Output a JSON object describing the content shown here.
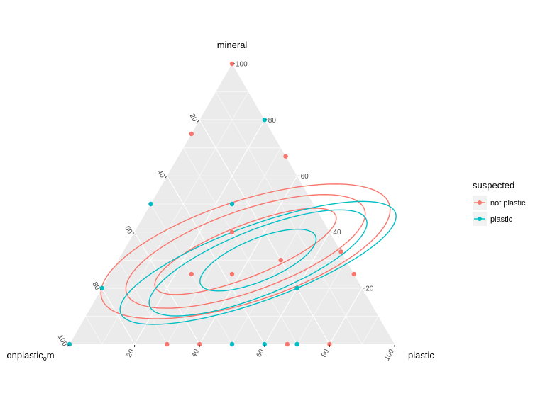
{
  "chart_data": {
    "type": "scatter",
    "subtype": "ternary",
    "title": "",
    "axes": {
      "top": "mineral",
      "left": "onplastic",
      "left_subscript": "o",
      "left_suffix": "m",
      "right": "plastic"
    },
    "ticks": [
      "20",
      "40",
      "60",
      "80",
      "100"
    ],
    "grid": true,
    "legend": {
      "title": "suspected",
      "position": "right",
      "entries": [
        {
          "label": "not plastic",
          "color": "#F8766D"
        },
        {
          "label": "plastic",
          "color": "#00BFC4"
        }
      ]
    },
    "series": [
      {
        "name": "not plastic",
        "color": "#F8766D",
        "points": [
          [
            0,
            100,
            0
          ],
          [
            0,
            0,
            100
          ],
          [
            33,
            67,
            0
          ],
          [
            67,
            33,
            0
          ],
          [
            50,
            0,
            50
          ],
          [
            67,
            0,
            33
          ],
          [
            75,
            25,
            0
          ],
          [
            37.5,
            25,
            37.5
          ],
          [
            0,
            75,
            25
          ],
          [
            30,
            40,
            30
          ],
          [
            0,
            50,
            50
          ],
          [
            50,
            30,
            20
          ],
          [
            25,
            25,
            50
          ],
          [
            30,
            0,
            70
          ],
          [
            40,
            0,
            60
          ],
          [
            80,
            0,
            20
          ],
          [
            60,
            20,
            20
          ]
        ]
      },
      {
        "name": "plastic",
        "color": "#00BFC4",
        "points": [
          [
            0,
            0,
            100
          ],
          [
            0,
            50,
            50
          ],
          [
            0,
            20,
            80
          ],
          [
            25,
            50,
            25
          ],
          [
            20,
            80,
            0
          ],
          [
            50,
            0,
            50
          ],
          [
            70,
            0,
            30
          ],
          [
            60,
            0,
            40
          ],
          [
            60,
            20,
            20
          ],
          [
            70,
            0,
            30
          ]
        ]
      }
    ],
    "contours": {
      "not plastic": [
        {
          "center": [
            37.6,
            33.1
          ],
          "a": 25,
          "b": 11,
          "angle": 0.5
        },
        {
          "center": [
            37.6,
            33.1
          ],
          "a": 33,
          "b": 17,
          "angle": 0.4
        },
        {
          "center": [
            37.6,
            33.1
          ],
          "a": 40,
          "b": 21,
          "angle": 0.35
        }
      ],
      "plastic": [
        {
          "center": [
            43.0,
            30.0
          ],
          "a": 16,
          "b": 9,
          "angle": 0.5
        },
        {
          "center": [
            43.5,
            29.0
          ],
          "a": 30,
          "b": 14,
          "angle": 0.5
        },
        {
          "center": [
            43.5,
            29.0
          ],
          "a": 38,
          "b": 16,
          "angle": 0.45
        }
      ]
    }
  }
}
